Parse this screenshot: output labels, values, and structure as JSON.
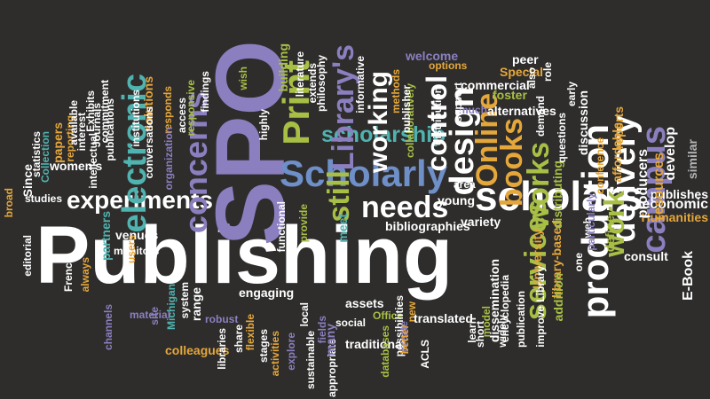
{
  "palette": {
    "background": "#2e2d2c",
    "white": "#ffffff",
    "purple": "#8c7fbf",
    "olive": "#a8bf45",
    "blue": "#6e8fc7",
    "orange": "#e5a73a",
    "teal": "#4fb3b0",
    "gray": "#b5b5b5"
  },
  "words": [
    {
      "text": "Publishing",
      "color": "white",
      "vertical": false
    },
    {
      "text": "SPO",
      "color": "purple",
      "vertical": true
    },
    {
      "text": "Scholarly",
      "color": "blue",
      "vertical": false
    },
    {
      "text": "scholars",
      "color": "white",
      "vertical": false
    },
    {
      "text": "experiments",
      "color": "white",
      "vertical": false
    },
    {
      "text": "Print",
      "color": "olive",
      "vertical": true
    },
    {
      "text": "scholarship",
      "color": "teal",
      "vertical": false
    },
    {
      "text": "Library's",
      "color": "purple",
      "vertical": true
    },
    {
      "text": "working",
      "color": "white",
      "vertical": true
    },
    {
      "text": "control",
      "color": "white",
      "vertical": true
    },
    {
      "text": "design",
      "color": "white",
      "vertical": true
    },
    {
      "text": "Online",
      "color": "orange",
      "vertical": true
    },
    {
      "text": "books",
      "color": "orange",
      "vertical": true
    },
    {
      "text": "works",
      "color": "olive",
      "vertical": true
    },
    {
      "text": "production",
      "color": "white",
      "vertical": true
    },
    {
      "text": "delivery",
      "color": "white",
      "vertical": true
    },
    {
      "text": "campus",
      "color": "purple",
      "vertical": true
    },
    {
      "text": "needs",
      "color": "white",
      "vertical": false
    },
    {
      "text": "still",
      "color": "olive",
      "vertical": true
    },
    {
      "text": "services",
      "color": "olive",
      "vertical": true
    },
    {
      "text": "work",
      "color": "olive",
      "vertical": true
    },
    {
      "text": "concerns",
      "color": "purple",
      "vertical": true
    },
    {
      "text": "electronic",
      "color": "teal",
      "vertical": true
    },
    {
      "text": "Humanities",
      "color": "orange",
      "vertical": false
    },
    {
      "text": "economic",
      "color": "white",
      "vertical": false
    },
    {
      "text": "publishes",
      "color": "white",
      "vertical": false
    },
    {
      "text": "resources",
      "color": "orange",
      "vertical": true
    },
    {
      "text": "develop",
      "color": "white",
      "vertical": true
    },
    {
      "text": "producers",
      "color": "white",
      "vertical": true
    },
    {
      "text": "similar",
      "color": "gray",
      "vertical": true
    },
    {
      "text": "affordable",
      "color": "orange",
      "vertical": true
    },
    {
      "text": "reports",
      "color": "orange",
      "vertical": true
    },
    {
      "text": "discussion",
      "color": "white",
      "vertical": true
    },
    {
      "text": "conference",
      "color": "orange",
      "vertical": true
    },
    {
      "text": "E-Book",
      "color": "white",
      "vertical": true
    },
    {
      "text": "consult",
      "color": "white",
      "vertical": false
    },
    {
      "text": "define",
      "color": "olive",
      "vertical": true
    },
    {
      "text": "web",
      "color": "white",
      "vertical": true
    },
    {
      "text": "particularly",
      "color": "purple",
      "vertical": true
    },
    {
      "text": "library-based",
      "color": "orange",
      "vertical": true
    },
    {
      "text": "one",
      "color": "white",
      "vertical": true
    },
    {
      "text": "addition",
      "color": "olive",
      "vertical": true
    },
    {
      "text": "University",
      "color": "orange",
      "vertical": true
    },
    {
      "text": "Library",
      "color": "white",
      "vertical": true
    },
    {
      "text": "distributing",
      "color": "olive",
      "vertical": true
    },
    {
      "text": "questions",
      "color": "white",
      "vertical": true
    },
    {
      "text": "demand",
      "color": "white",
      "vertical": true
    },
    {
      "text": "early",
      "color": "white",
      "vertical": true
    },
    {
      "text": "foster",
      "color": "olive",
      "vertical": false
    },
    {
      "text": "Special",
      "color": "orange",
      "vertical": false
    },
    {
      "text": "peer",
      "color": "white",
      "vertical": false
    },
    {
      "text": "also",
      "color": "white",
      "vertical": true
    },
    {
      "text": "role",
      "color": "white",
      "vertical": true
    },
    {
      "text": "commercial",
      "color": "white",
      "vertical": false
    },
    {
      "text": "alternatives",
      "color": "white",
      "vertical": false
    },
    {
      "text": "much",
      "color": "purple",
      "vertical": false
    },
    {
      "text": "support",
      "color": "white",
      "vertical": true
    },
    {
      "text": "welcome",
      "color": "purple",
      "vertical": false
    },
    {
      "text": "options",
      "color": "orange",
      "vertical": false
    },
    {
      "text": "collaboratively",
      "color": "olive",
      "vertical": true
    },
    {
      "text": "distribution",
      "color": "white",
      "vertical": true
    },
    {
      "text": "publisher",
      "color": "white",
      "vertical": true
    },
    {
      "text": "methods",
      "color": "orange",
      "vertical": true
    },
    {
      "text": "informative",
      "color": "white",
      "vertical": true
    },
    {
      "text": "literature",
      "color": "white",
      "vertical": true
    },
    {
      "text": "philosophy",
      "color": "white",
      "vertical": true
    },
    {
      "text": "extends",
      "color": "white",
      "vertical": true
    },
    {
      "text": "building",
      "color": "olive",
      "vertical": true
    },
    {
      "text": "wish",
      "color": "olive",
      "vertical": true
    },
    {
      "text": "highly",
      "color": "white",
      "vertical": true
    },
    {
      "text": "findings",
      "color": "white",
      "vertical": true
    },
    {
      "text": "responsive",
      "color": "olive",
      "vertical": true
    },
    {
      "text": "access",
      "color": "white",
      "vertical": true
    },
    {
      "text": "responds",
      "color": "orange",
      "vertical": true
    },
    {
      "text": "organization",
      "color": "purple",
      "vertical": true
    },
    {
      "text": "solutions",
      "color": "orange",
      "vertical": true
    },
    {
      "text": "conversations",
      "color": "white",
      "vertical": true
    },
    {
      "text": "institutions",
      "color": "white",
      "vertical": true
    },
    {
      "text": "publications",
      "color": "white",
      "vertical": true
    },
    {
      "text": "commitment",
      "color": "white",
      "vertical": true
    },
    {
      "text": "Exhibits",
      "color": "white",
      "vertical": true
    },
    {
      "text": "Journals",
      "color": "white",
      "vertical": true
    },
    {
      "text": "interest",
      "color": "white",
      "vertical": true
    },
    {
      "text": "intellectual",
      "color": "white",
      "vertical": true
    },
    {
      "text": "reporting",
      "color": "orange",
      "vertical": true
    },
    {
      "text": "available",
      "color": "white",
      "vertical": true
    },
    {
      "text": "papers",
      "color": "orange",
      "vertical": true
    },
    {
      "text": "women's",
      "color": "white",
      "vertical": false
    },
    {
      "text": "Collection",
      "color": "teal",
      "vertical": true
    },
    {
      "text": "statistics",
      "color": "white",
      "vertical": true
    },
    {
      "text": "Since",
      "color": "white",
      "vertical": true
    },
    {
      "text": "broad",
      "color": "orange",
      "vertical": true
    },
    {
      "text": "studies",
      "color": "white",
      "vertical": false
    },
    {
      "text": "editorial",
      "color": "white",
      "vertical": true
    },
    {
      "text": "French",
      "color": "white",
      "vertical": true
    },
    {
      "text": "always",
      "color": "orange",
      "vertical": true
    },
    {
      "text": "partners",
      "color": "teal",
      "vertical": true
    },
    {
      "text": "venues",
      "color": "white",
      "vertical": false
    },
    {
      "text": "monitors",
      "color": "white",
      "vertical": false
    },
    {
      "text": "users",
      "color": "orange",
      "vertical": true
    },
    {
      "text": "channels",
      "color": "purple",
      "vertical": true
    },
    {
      "text": "material",
      "color": "purple",
      "vertical": false
    },
    {
      "text": "site",
      "color": "purple",
      "vertical": true
    },
    {
      "text": "Michigan",
      "color": "teal",
      "vertical": true
    },
    {
      "text": "system",
      "color": "white",
      "vertical": true
    },
    {
      "text": "range",
      "color": "white",
      "vertical": true
    },
    {
      "text": "engaging",
      "color": "white",
      "vertical": false
    },
    {
      "text": "colleagues",
      "color": "orange",
      "vertical": false
    },
    {
      "text": "robust",
      "color": "purple",
      "vertical": false
    },
    {
      "text": "libraries",
      "color": "white",
      "vertical": true
    },
    {
      "text": "share",
      "color": "white",
      "vertical": true
    },
    {
      "text": "flexible",
      "color": "orange",
      "vertical": true
    },
    {
      "text": "stages",
      "color": "white",
      "vertical": true
    },
    {
      "text": "activities",
      "color": "orange",
      "vertical": true
    },
    {
      "text": "explore",
      "color": "purple",
      "vertical": true
    },
    {
      "text": "functional",
      "color": "white",
      "vertical": true
    },
    {
      "text": "provide",
      "color": "olive",
      "vertical": true
    },
    {
      "text": "local",
      "color": "white",
      "vertical": true
    },
    {
      "text": "sustainable",
      "color": "white",
      "vertical": true
    },
    {
      "text": "fields",
      "color": "purple",
      "vertical": true
    },
    {
      "text": "appropriate",
      "color": "white",
      "vertical": true
    },
    {
      "text": "meet",
      "color": "teal",
      "vertical": true
    },
    {
      "text": "many",
      "color": "purple",
      "vertical": true
    },
    {
      "text": "traditional",
      "color": "white",
      "vertical": false
    },
    {
      "text": "social",
      "color": "white",
      "vertical": false
    },
    {
      "text": "assets",
      "color": "white",
      "vertical": false
    },
    {
      "text": "Office",
      "color": "olive",
      "vertical": false
    },
    {
      "text": "databases",
      "color": "olive",
      "vertical": true
    },
    {
      "text": "possibilities",
      "color": "white",
      "vertical": true
    },
    {
      "text": "create",
      "color": "purple",
      "vertical": true
    },
    {
      "text": "better",
      "color": "orange",
      "vertical": true
    },
    {
      "text": "new",
      "color": "orange",
      "vertical": true
    },
    {
      "text": "ACLS",
      "color": "white",
      "vertical": true
    },
    {
      "text": "translated",
      "color": "white",
      "vertical": false
    },
    {
      "text": "bibliographies",
      "color": "white",
      "vertical": false
    },
    {
      "text": "young",
      "color": "white",
      "vertical": false
    },
    {
      "text": "area",
      "color": "white",
      "vertical": false
    },
    {
      "text": "variety",
      "color": "white",
      "vertical": false
    },
    {
      "text": "learn",
      "color": "white",
      "vertical": true
    },
    {
      "text": "short",
      "color": "white",
      "vertical": true
    },
    {
      "text": "model",
      "color": "olive",
      "vertical": true
    },
    {
      "text": "dissemination",
      "color": "white",
      "vertical": true
    },
    {
      "text": "widely",
      "color": "white",
      "vertical": true
    },
    {
      "text": "encyclopedia",
      "color": "white",
      "vertical": true
    },
    {
      "text": "publication",
      "color": "white",
      "vertical": true
    },
    {
      "text": "improve",
      "color": "white",
      "vertical": true
    }
  ]
}
